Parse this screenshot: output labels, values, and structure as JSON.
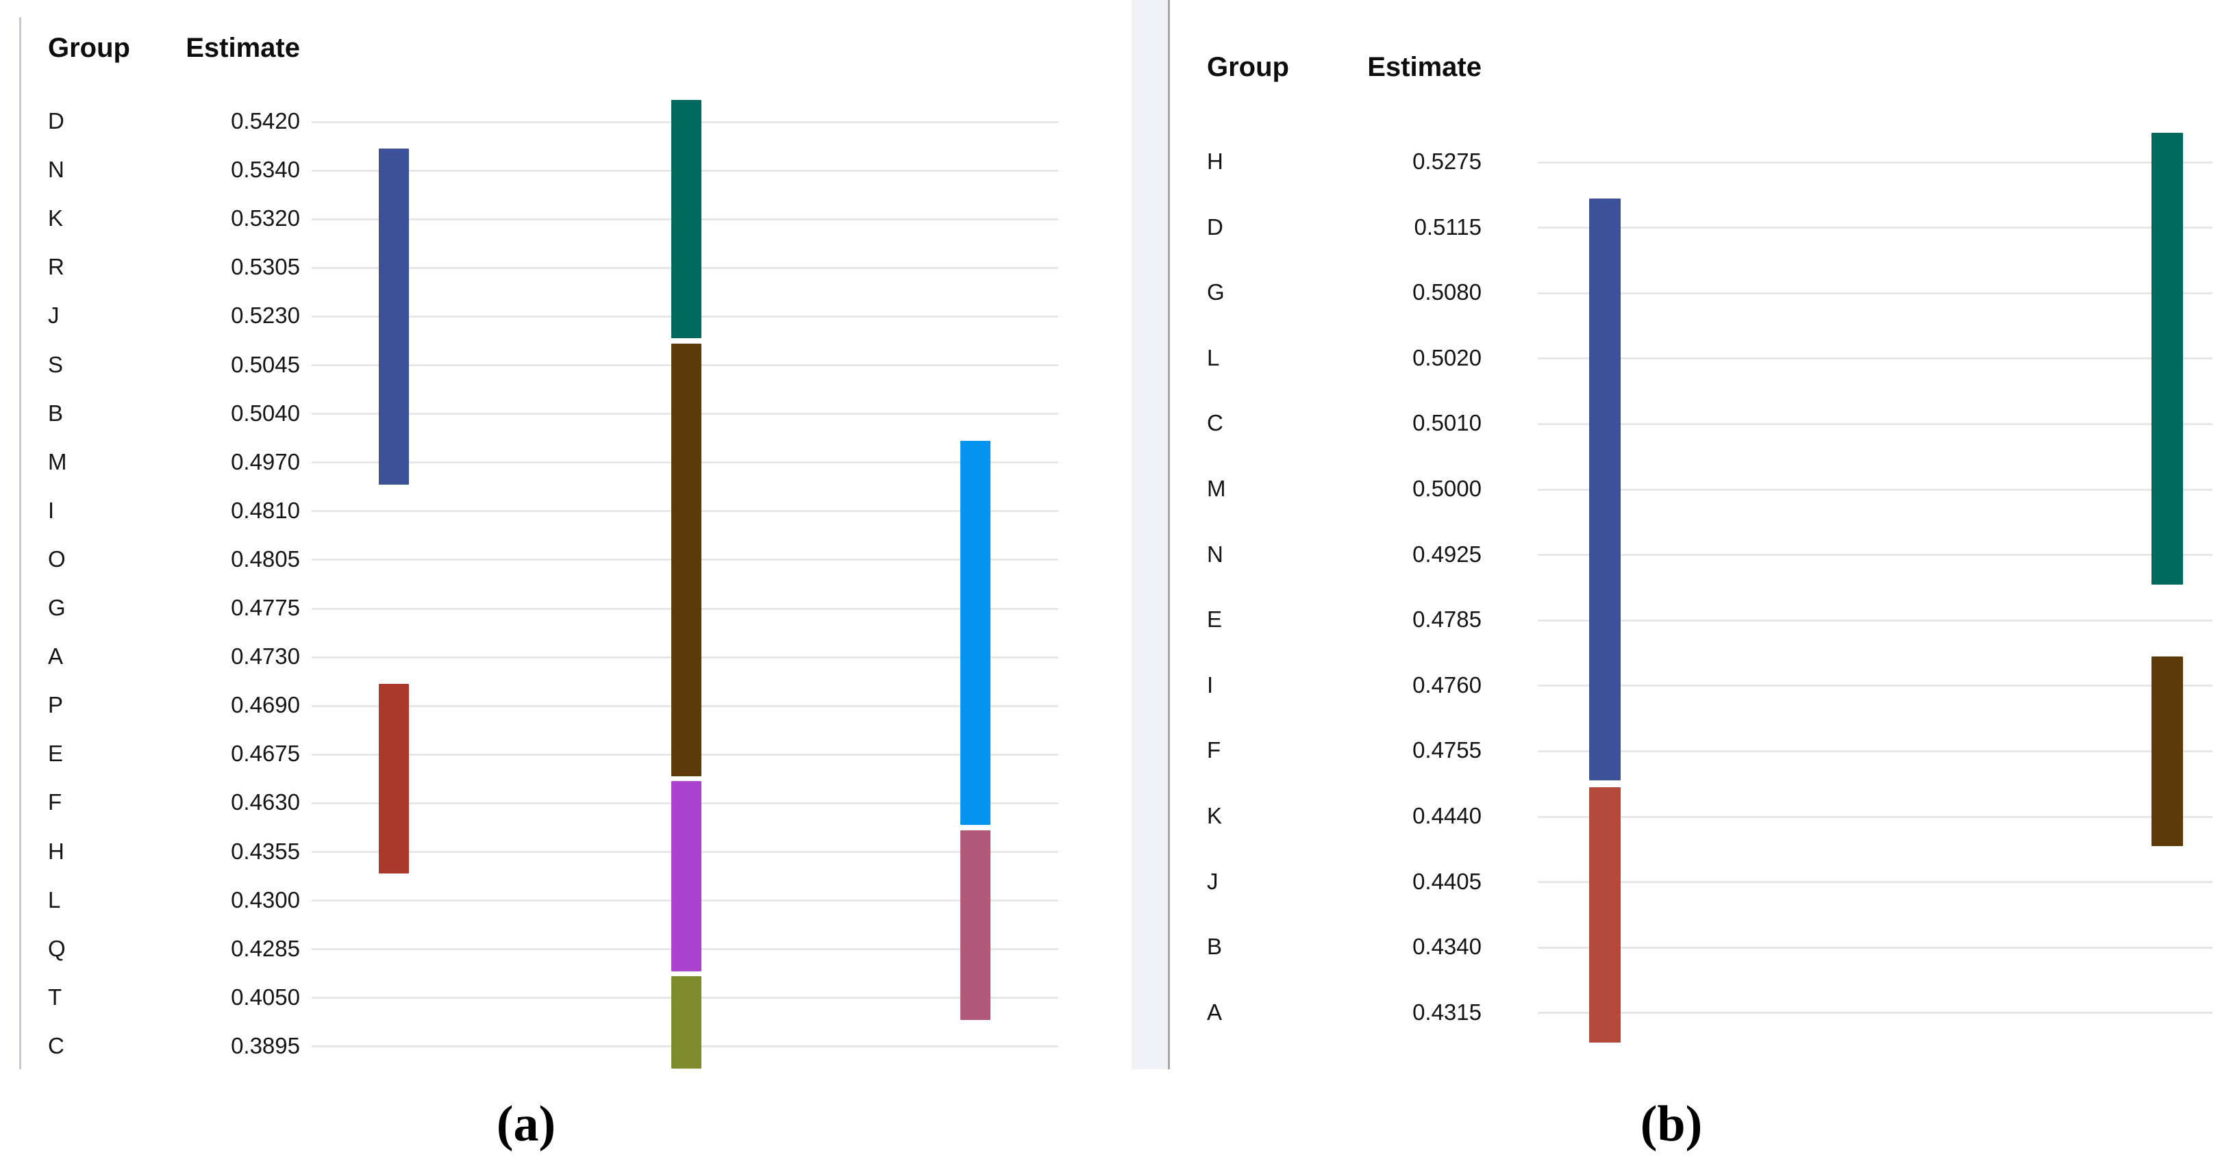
{
  "chart_data": [
    {
      "type": "table",
      "caption": "(a)",
      "columns": [
        "Group",
        "Estimate"
      ],
      "rows": [
        [
          "D",
          "0.5420"
        ],
        [
          "N",
          "0.5340"
        ],
        [
          "K",
          "0.5320"
        ],
        [
          "R",
          "0.5305"
        ],
        [
          "J",
          "0.5230"
        ],
        [
          "S",
          "0.5045"
        ],
        [
          "B",
          "0.5040"
        ],
        [
          "M",
          "0.4970"
        ],
        [
          "I",
          "0.4810"
        ],
        [
          "O",
          "0.4805"
        ],
        [
          "G",
          "0.4775"
        ],
        [
          "A",
          "0.4730"
        ],
        [
          "P",
          "0.4690"
        ],
        [
          "E",
          "0.4675"
        ],
        [
          "F",
          "0.4630"
        ],
        [
          "H",
          "0.4355"
        ],
        [
          "L",
          "0.4300"
        ],
        [
          "Q",
          "0.4285"
        ],
        [
          "T",
          "0.4050"
        ],
        [
          "C",
          "0.3895"
        ]
      ],
      "grid": true,
      "bars": [
        {
          "name": "navy-bar",
          "color": "#3d5199",
          "track": 0,
          "from": "N",
          "to": "M"
        },
        {
          "name": "red-bar",
          "color": "#a93a2b",
          "track": 0,
          "from": "P",
          "to": "H"
        },
        {
          "name": "teal-bar",
          "color": "#00695e",
          "track": 1,
          "from": "D",
          "to": "J"
        },
        {
          "name": "brown-bar",
          "color": "#5c3a0a",
          "track": 1,
          "from": "S",
          "to": "E"
        },
        {
          "name": "magenta-bar",
          "color": "#ac42d0",
          "track": 1,
          "from": "F",
          "to": "Q"
        },
        {
          "name": "olive-bar",
          "color": "#7d8b2b",
          "track": 1,
          "from": "T",
          "to": "C"
        },
        {
          "name": "cyan-bar",
          "color": "#0593f0",
          "track": 2,
          "from": "M",
          "to": "F"
        },
        {
          "name": "mauve-bar",
          "color": "#b2597b",
          "track": 2,
          "from": "H",
          "to": "T"
        }
      ]
    },
    {
      "type": "table",
      "caption": "(b)",
      "columns": [
        "Group",
        "Estimate"
      ],
      "rows": [
        [
          "H",
          "0.5275"
        ],
        [
          "D",
          "0.5115"
        ],
        [
          "G",
          "0.5080"
        ],
        [
          "L",
          "0.5020"
        ],
        [
          "C",
          "0.5010"
        ],
        [
          "M",
          "0.5000"
        ],
        [
          "N",
          "0.4925"
        ],
        [
          "E",
          "0.4785"
        ],
        [
          "I",
          "0.4760"
        ],
        [
          "F",
          "0.4755"
        ],
        [
          "K",
          "0.4440"
        ],
        [
          "J",
          "0.4405"
        ],
        [
          "B",
          "0.4340"
        ],
        [
          "A",
          "0.4315"
        ]
      ],
      "grid": true,
      "bars": [
        {
          "name": "navy-bar",
          "color": "#3d5199",
          "track": 0,
          "from": "D",
          "to": "F"
        },
        {
          "name": "red-bar",
          "color": "#b4483b",
          "track": 0,
          "from": "K",
          "to": "A"
        },
        {
          "name": "teal-bar",
          "color": "#00695e",
          "track": 1,
          "from": "H",
          "to": "N"
        },
        {
          "name": "brown-bar",
          "color": "#5c3a0a",
          "track": 1,
          "from": "I",
          "to": "K"
        }
      ]
    }
  ]
}
